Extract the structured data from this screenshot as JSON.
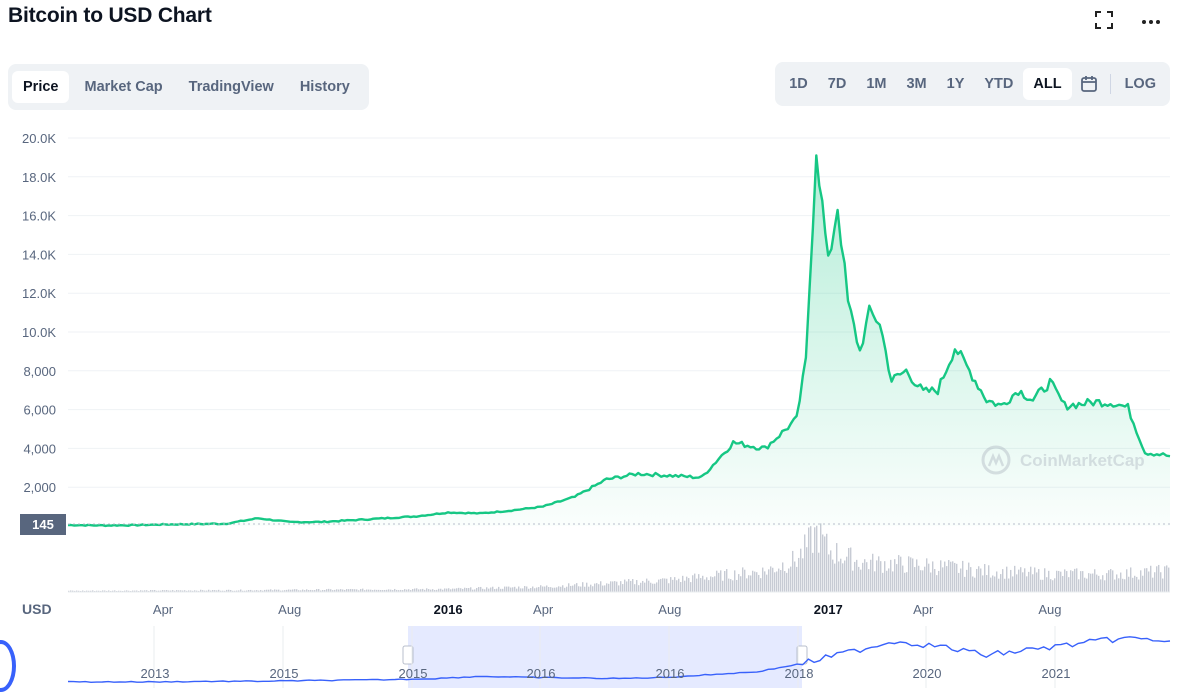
{
  "header": {
    "title": "Bitcoin to USD Chart",
    "fullscreen_icon": "expand-icon",
    "more_icon": "more-dots-icon"
  },
  "view_tabs": [
    {
      "label": "Price",
      "active": true
    },
    {
      "label": "Market Cap",
      "active": false
    },
    {
      "label": "TradingView",
      "active": false
    },
    {
      "label": "History",
      "active": false
    }
  ],
  "range_buttons": [
    {
      "label": "1D",
      "active": false
    },
    {
      "label": "7D",
      "active": false
    },
    {
      "label": "1M",
      "active": false
    },
    {
      "label": "3M",
      "active": false
    },
    {
      "label": "1Y",
      "active": false
    },
    {
      "label": "YTD",
      "active": false
    },
    {
      "label": "ALL",
      "active": true
    }
  ],
  "calendar_icon": "calendar-icon",
  "log_label": "LOG",
  "watermark": "CoinMarketCap",
  "currency_label": "USD",
  "current_price_label": "145",
  "colors": {
    "line": "#16c784",
    "fill_top": "#16c784",
    "volume": "#c7cbd4",
    "minimap_line": "#3861fb",
    "minimap_window": "#e5eaff"
  },
  "chart_data": {
    "type": "line",
    "ylim": [
      0,
      20000
    ],
    "y_ticks": [
      2000,
      4000,
      6000,
      8000,
      10000,
      12000,
      14000,
      16000,
      18000,
      20000
    ],
    "y_tick_labels": [
      "2,000",
      "4,000",
      "6,000",
      "8,000",
      "10.0K",
      "12.0K",
      "14.0K",
      "16.0K",
      "18.0K",
      "20.0K"
    ],
    "x_ticks": [
      "2015-04",
      "2015-08",
      "2016-01",
      "2016-04",
      "2016-08",
      "2017-01",
      "2017-04",
      "2017-08"
    ],
    "x_tick_labels": [
      "Apr",
      "Aug",
      "2016",
      "Apr",
      "Aug",
      "2017",
      "Apr",
      "Aug"
    ],
    "x_tick_bold": [
      false,
      false,
      true,
      false,
      false,
      true,
      false,
      false
    ],
    "series": [
      {
        "x": [
          "2015-01",
          "2015-02",
          "2015-03",
          "2015-04",
          "2015-05",
          "2015-06",
          "2015-07",
          "2015-08",
          "2015-09",
          "2015-10",
          "2015-11",
          "2015-12",
          "2016-01",
          "2016-02",
          "2016-03",
          "2016-04",
          "2016-05",
          "2016-06",
          "2016-07",
          "2016-08",
          "2016-09",
          "2016-10",
          "2016-11",
          "2016-12",
          "2016-12-10",
          "2016-12-20",
          "2017-01",
          "2017-01-10",
          "2017-01-20",
          "2017-02",
          "2017-02-10",
          "2017-02-20",
          "2017-03",
          "2017-03-15",
          "2017-04",
          "2017-04-15",
          "2017-05",
          "2017-05-15",
          "2017-06",
          "2017-06-15",
          "2017-07",
          "2017-07-15",
          "2017-08",
          "2017-08-15",
          "2017-09",
          "2017-09-15",
          "2017-10",
          "2017-10-15",
          "2017-11",
          "2017-11-15",
          "2017-11-25"
        ],
        "y": [
          50,
          30,
          40,
          80,
          100,
          120,
          400,
          200,
          210,
          300,
          400,
          500,
          700,
          650,
          800,
          1000,
          1500,
          2400,
          2700,
          2600,
          2500,
          4300,
          4000,
          5500,
          8500,
          19500,
          13500,
          16500,
          11500,
          9000,
          11000,
          10500,
          7500,
          8000,
          6900,
          7000,
          9200,
          8000,
          6500,
          6200,
          7000,
          6500,
          7400,
          6200,
          6300,
          6400,
          6350,
          6100,
          3800,
          3700,
          3600
        ]
      }
    ],
    "volume": {
      "x": [
        "2015-01",
        "2015-06",
        "2016-01",
        "2016-04",
        "2016-08",
        "2016-11",
        "2016-12",
        "2016-12-20",
        "2017-01",
        "2017-02",
        "2017-04",
        "2017-06",
        "2017-08",
        "2017-10",
        "2017-11-25"
      ],
      "y": [
        0.02,
        0.03,
        0.05,
        0.09,
        0.2,
        0.35,
        0.55,
        1.0,
        0.7,
        0.5,
        0.45,
        0.35,
        0.3,
        0.3,
        0.35
      ]
    },
    "minimap": {
      "x_tick_labels": [
        "2013",
        "2015",
        "2015",
        "2016",
        "2016",
        "2018",
        "2020",
        "2021"
      ],
      "y": [
        0.02,
        0.02,
        0.02,
        0.03,
        0.03,
        0.04,
        0.05,
        0.06,
        0.08,
        0.12,
        0.1,
        0.09,
        0.08,
        0.1,
        0.15,
        0.2,
        0.35,
        0.55,
        0.75,
        0.65,
        0.5,
        0.6,
        0.7,
        0.8,
        0.75
      ]
    }
  }
}
